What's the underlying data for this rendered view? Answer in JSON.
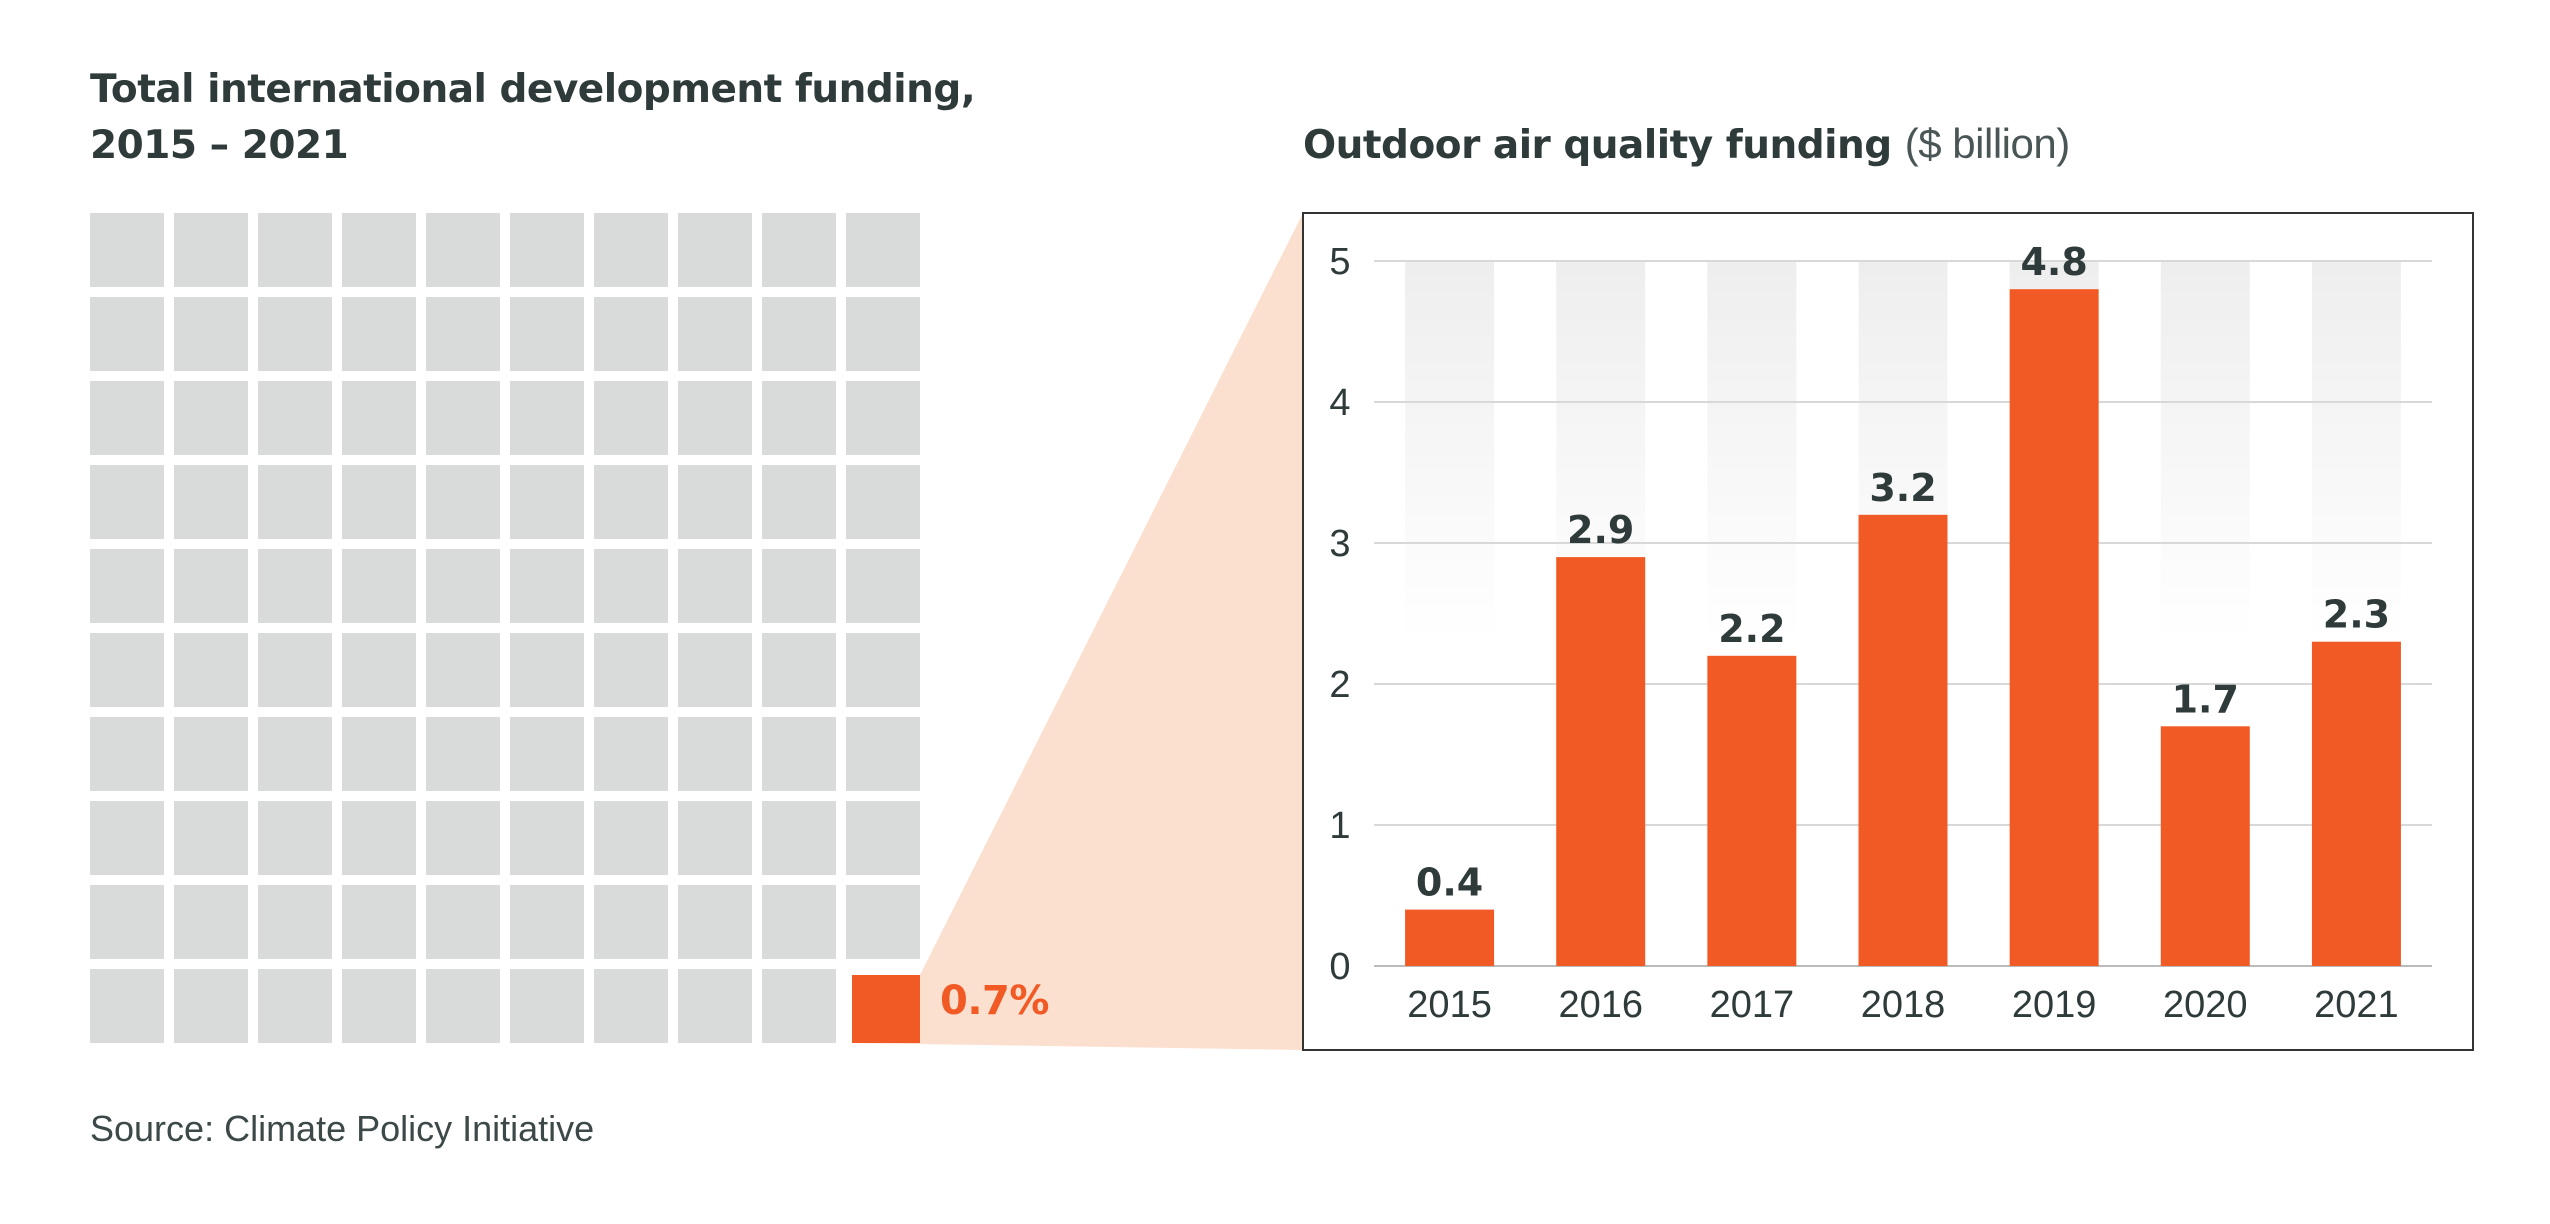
{
  "left_panel": {
    "title_line1": "Total international development funding,",
    "title_line2": "2015 – 2021",
    "waffle": {
      "rows": 10,
      "cols": 10,
      "highlighted_cells": 1
    },
    "share_label": "0.7%"
  },
  "right_panel": {
    "title": "Outdoor air quality funding",
    "unit": "($ billion)"
  },
  "chart_data": {
    "type": "bar",
    "title": "Outdoor air quality funding ($ billion)",
    "categories": [
      "2015",
      "2016",
      "2017",
      "2018",
      "2019",
      "2020",
      "2021"
    ],
    "values": [
      0.4,
      2.9,
      2.2,
      3.2,
      4.8,
      1.7,
      2.3
    ],
    "value_labels": [
      "0.4",
      "2.9",
      "2.2",
      "3.2",
      "4.8",
      "1.7",
      "2.3"
    ],
    "ylim": [
      0,
      5
    ],
    "yticks": [
      "0",
      "1",
      "2",
      "3",
      "4",
      "5"
    ],
    "grid": true,
    "xlabel": "",
    "ylabel": ""
  },
  "source": "Source: Climate Policy Initiative",
  "colors": {
    "accent": "#f15a24",
    "cell": "#d9dada",
    "zoom_fill": "#fbdfcf",
    "text": "#2f3a3a",
    "gridline": "#d8d8d8",
    "frame": "#333333"
  }
}
